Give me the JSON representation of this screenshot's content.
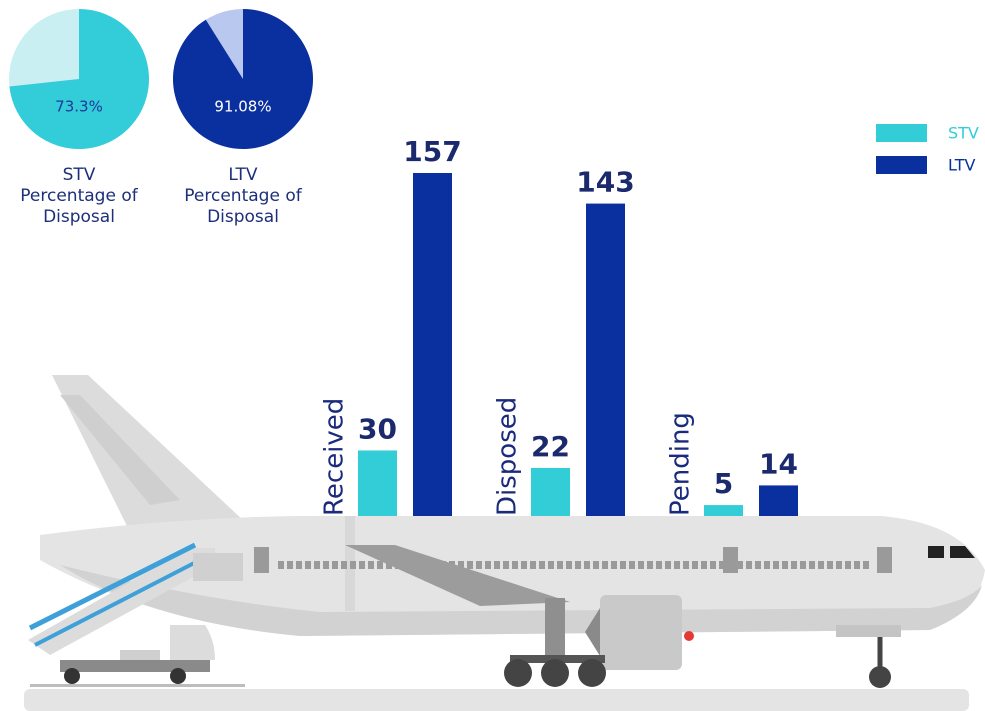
{
  "chart_data": [
    {
      "type": "pie",
      "title": "STV Percentage of Disposal",
      "values": [
        73.3
      ],
      "value_labels": [
        "73.3%"
      ],
      "color": "#33ccd9"
    },
    {
      "type": "pie",
      "title": "LTV Percentage of Disposal",
      "values": [
        91.08
      ],
      "value_labels": [
        "91.08%"
      ],
      "color": "#0a2f9e"
    },
    {
      "type": "bar",
      "categories": [
        "Received",
        "Disposed",
        "Pending"
      ],
      "series": [
        {
          "name": "STV",
          "color": "#33cdd8",
          "values": [
            30,
            22,
            5
          ]
        },
        {
          "name": "LTV",
          "color": "#0a2f9e",
          "values": [
            157,
            143,
            14
          ]
        }
      ],
      "legend": "top-right"
    }
  ]
}
